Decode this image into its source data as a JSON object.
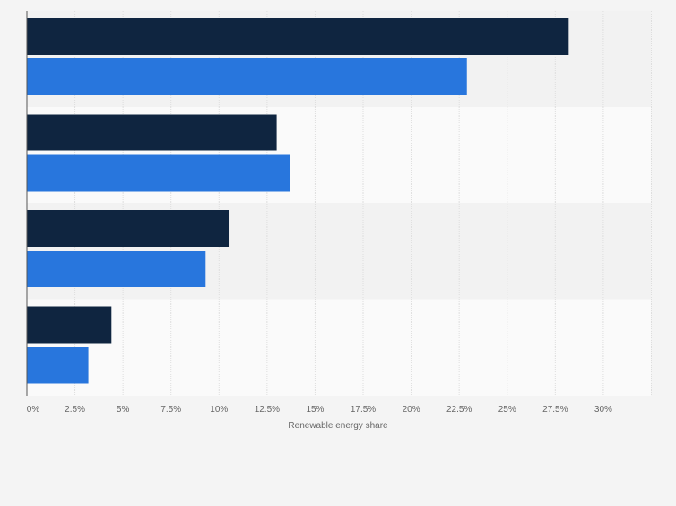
{
  "chart_data": {
    "type": "bar",
    "orientation": "horizontal",
    "categories": [
      "",
      "",
      "",
      ""
    ],
    "series": [
      {
        "values": [
          28.2,
          13.0,
          10.5,
          4.4
        ]
      },
      {
        "values": [
          22.9,
          13.7,
          9.3,
          3.2
        ]
      }
    ],
    "xlabel": "Renewable energy share",
    "xticks": [
      "0%",
      "2.5%",
      "5%",
      "7.5%",
      "10%",
      "12.5%",
      "15%",
      "17.5%",
      "20%",
      "22.5%",
      "25%",
      "27.5%",
      "30%"
    ],
    "xlim": [
      0,
      32.5
    ],
    "grid": true,
    "colors": {
      "series": [
        "#0f2540",
        "#2876dd"
      ],
      "band_odd": "#f2f2f2",
      "band_even": "#fafafa",
      "grid": "#dedede",
      "axis": "#555555",
      "tick_text": "#666666"
    }
  }
}
